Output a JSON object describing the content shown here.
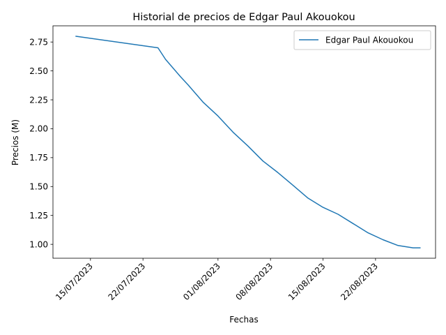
{
  "chart_data": {
    "type": "line",
    "title": "Historial de precios de Edgar Paul Akouokou",
    "xlabel": "Fechas",
    "ylabel": "Precios (M)",
    "x_ticks": [
      "2023-07-15",
      "2023-07-22",
      "2023-08-01",
      "2023-08-08",
      "2023-08-15",
      "2023-08-22"
    ],
    "x_tick_labels": [
      "15/07/2023",
      "22/07/2023",
      "01/08/2023",
      "08/08/2023",
      "15/08/2023",
      "22/08/2023"
    ],
    "xlim": [
      "2023-07-10",
      "2023-08-30"
    ],
    "y_ticks": [
      1.0,
      1.25,
      1.5,
      1.75,
      2.0,
      2.25,
      2.5,
      2.75
    ],
    "y_tick_labels": [
      "1.00",
      "1.25",
      "1.50",
      "1.75",
      "2.00",
      "2.25",
      "2.50",
      "2.75"
    ],
    "ylim": [
      0.88,
      2.89
    ],
    "grid": false,
    "legend_position": "top-right",
    "colors": {
      "line": "#1f77b4"
    },
    "series": [
      {
        "name": "Edgar Paul Akouokou",
        "x": [
          "2023-07-13",
          "2023-07-24",
          "2023-07-25",
          "2023-07-27",
          "2023-07-28",
          "2023-07-30",
          "2023-08-01",
          "2023-08-03",
          "2023-08-05",
          "2023-08-07",
          "2023-08-09",
          "2023-08-11",
          "2023-08-13",
          "2023-08-15",
          "2023-08-17",
          "2023-08-19",
          "2023-08-21",
          "2023-08-23",
          "2023-08-25",
          "2023-08-27",
          "2023-08-28"
        ],
        "values": [
          2.8,
          2.7,
          2.6,
          2.45,
          2.38,
          2.23,
          2.11,
          1.97,
          1.85,
          1.72,
          1.62,
          1.51,
          1.4,
          1.32,
          1.26,
          1.18,
          1.1,
          1.04,
          0.99,
          0.97,
          0.97
        ]
      }
    ]
  }
}
